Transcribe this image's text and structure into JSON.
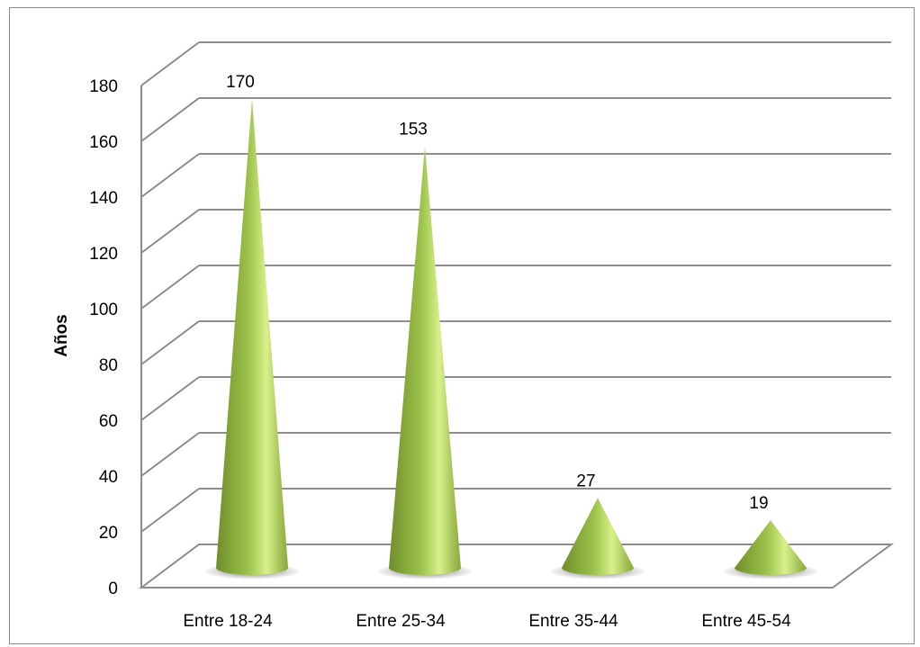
{
  "chart_data": {
    "type": "bar",
    "style": "3d-cone",
    "categories": [
      "Entre 18-24",
      "Entre 25-34",
      "Entre 35-44",
      "Entre 45-54"
    ],
    "values": [
      170,
      153,
      27,
      19
    ],
    "data_labels": [
      "170",
      "153",
      "27",
      "19"
    ],
    "title": "",
    "xlabel": "",
    "ylabel": "Años",
    "ylim": [
      0,
      180
    ],
    "yticks": [
      0,
      20,
      40,
      60,
      80,
      100,
      120,
      140,
      160,
      180
    ],
    "grid": true,
    "legend": "none"
  },
  "colors": {
    "cone_dark": "#6f8e2c",
    "cone_mid": "#9cc24a",
    "cone_light": "#d8f08a",
    "gridline": "#8c8c8c",
    "shadow": "#5a5a5a"
  }
}
